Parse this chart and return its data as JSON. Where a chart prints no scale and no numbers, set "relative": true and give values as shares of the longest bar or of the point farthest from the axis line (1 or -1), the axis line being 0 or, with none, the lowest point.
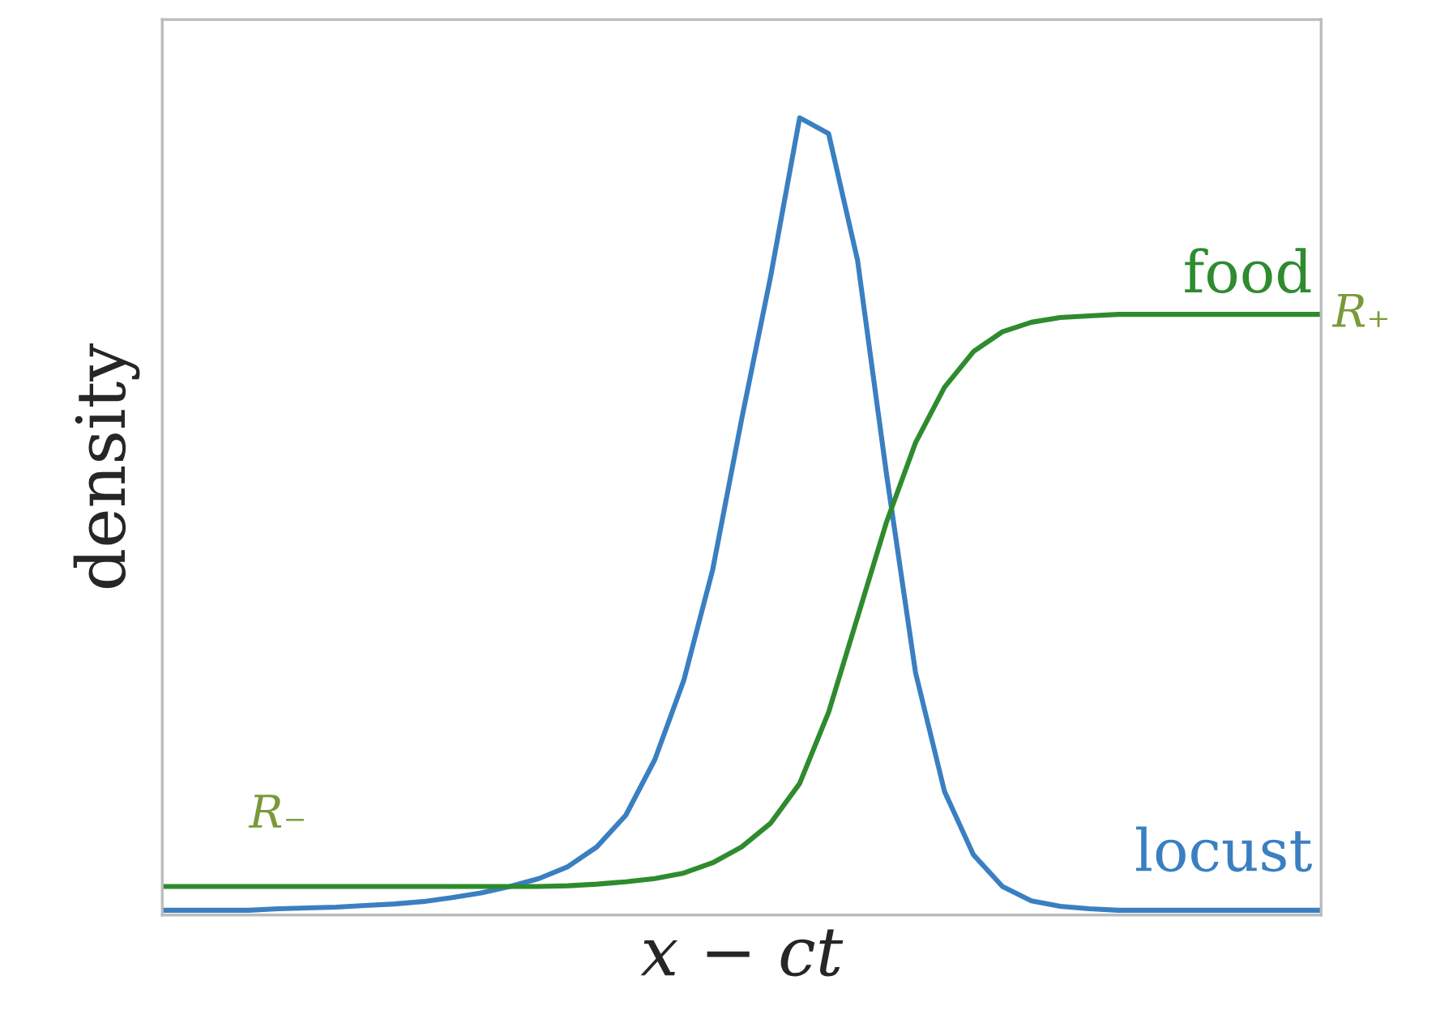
{
  "chart_data": {
    "type": "line",
    "relative": true,
    "xlabel": "x − ct",
    "ylabel": "density",
    "categories": [
      null,
      null,
      null,
      null,
      null,
      null,
      null,
      null,
      null,
      null,
      null,
      null,
      null,
      null,
      null,
      null,
      null,
      null,
      null,
      null,
      null,
      null,
      null,
      null,
      null,
      null,
      null,
      null,
      null,
      null,
      null,
      null,
      null,
      null,
      null,
      null,
      null,
      null,
      null,
      null,
      null
    ],
    "series": [
      {
        "name": "locust",
        "color": "#3a7fc1",
        "values": [
          0,
          0,
          0,
          0,
          0.002,
          0.003,
          0.004,
          0.006,
          0.008,
          0.011,
          0.016,
          0.022,
          0.03,
          0.04,
          0.055,
          0.08,
          0.12,
          0.19,
          0.29,
          0.43,
          0.62,
          0.8,
          1,
          0.98,
          0.82,
          0.55,
          0.3,
          0.15,
          0.07,
          0.03,
          0.012,
          0.005,
          0.002,
          0,
          0,
          0,
          0,
          0,
          0,
          0,
          0
        ]
      },
      {
        "name": "food",
        "color": "#2e8b2e",
        "values": [
          0.03,
          0.03,
          0.03,
          0.03,
          0.03,
          0.03,
          0.03,
          0.03,
          0.03,
          0.03,
          0.03,
          0.03,
          0.03,
          0.03,
          0.031,
          0.033,
          0.036,
          0.04,
          0.047,
          0.06,
          0.08,
          0.11,
          0.16,
          0.25,
          0.37,
          0.49,
          0.59,
          0.66,
          0.705,
          0.73,
          0.742,
          0.748,
          0.75,
          0.752,
          0.752,
          0.752,
          0.752,
          0.752,
          0.752,
          0.752,
          0.752
        ]
      }
    ],
    "annotations": [
      "R₋",
      "R₊"
    ]
  }
}
